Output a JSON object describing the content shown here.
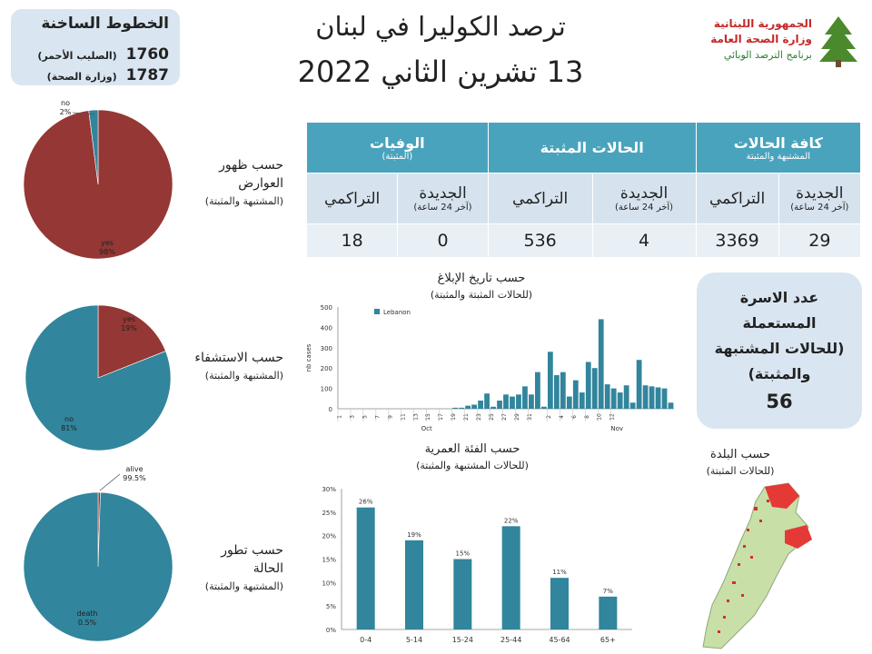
{
  "hotlines": {
    "title": "الخطوط الساخنة",
    "lines": [
      {
        "number": "1760",
        "label": "(الصليب الأحمر)"
      },
      {
        "number": "1787",
        "label": "(وزارة الصحة)"
      }
    ]
  },
  "header": {
    "title": "ترصد الكوليرا في لبنان",
    "date": "13 تشرين الثاني 2022"
  },
  "logo": {
    "line1": "الجمهورية اللبنانية",
    "line2": "وزارة الصحة العامة",
    "line3": "برنامج الترصد الوبائي"
  },
  "table": {
    "groups": [
      {
        "label": "كافة الحالات",
        "sub": "المشتبهة والمثبتة"
      },
      {
        "label": "الحالات المثبتة",
        "sub": ""
      },
      {
        "label": "الوفيات",
        "sub": "(المثبتة)"
      }
    ],
    "new_label": "الجديدة",
    "new_sub": "(آخر 24 ساعة)",
    "cum_label": "التراكمي",
    "values": [
      "29",
      "3369",
      "4",
      "536",
      "0",
      "18"
    ]
  },
  "labels": {
    "symptoms": {
      "line1": "حسب ظهور",
      "line2": "العوارض",
      "sub": "(المشتبهة والمثبتة)"
    },
    "hospital": {
      "line1": "حسب الاستشفاء",
      "sub": "(المشتبهة والمثبتة)"
    },
    "outcome": {
      "line1": "حسب تطور",
      "line2": "الحالة",
      "sub": "(المشتبهة والمثبتة)"
    },
    "report_date": {
      "line1": "حسب تاريخ الإبلاغ",
      "sub": "(للحالات المثبتة والمثبتة)"
    },
    "age_group": {
      "line1": "حسب الفئة العمرية",
      "sub": "(للحالات المشتبهة والمثبتة)"
    },
    "district": {
      "line1": "حسب البلدة",
      "sub": "(للحالات المثبتة)"
    }
  },
  "beds_box": {
    "line1": "عدد الاسرة",
    "line2": "المستعملة",
    "line3": "(للحالات المشتبهة",
    "line4": "والمثبتة)",
    "value": "56"
  },
  "chart_data": [
    {
      "type": "pie",
      "slices": [
        {
          "label": "yes",
          "value": 98,
          "display": "98%"
        },
        {
          "label": "no",
          "value": 2,
          "display": "2%"
        }
      ],
      "colors": [
        "#953735",
        "#31859c"
      ]
    },
    {
      "type": "pie",
      "slices": [
        {
          "label": "yes",
          "value": 19,
          "display": "19%"
        },
        {
          "label": "no",
          "value": 81,
          "display": "81%"
        }
      ],
      "colors": [
        "#953735",
        "#31859c"
      ]
    },
    {
      "type": "pie",
      "slices": [
        {
          "label": "death",
          "value": 0.5,
          "display": "0.5%"
        },
        {
          "label": "alive",
          "value": 99.5,
          "display": "99.5%"
        }
      ],
      "colors": [
        "#953735",
        "#31859c"
      ]
    },
    {
      "type": "bar",
      "legend": "Lebanon",
      "ylabel": "nb cases",
      "ylim": [
        0,
        500
      ],
      "yticks": [
        0,
        100,
        200,
        300,
        400,
        500
      ],
      "xticklabels": [
        "1",
        "3",
        "5",
        "7",
        "9",
        "11",
        "13",
        "15",
        "17",
        "19",
        "21",
        "23",
        "25",
        "27",
        "29",
        "31",
        "2",
        "4",
        "6",
        "8",
        "10",
        "12"
      ],
      "month_labels": [
        "Oct",
        "Nov"
      ],
      "values": [
        0,
        0,
        0,
        0,
        0,
        0,
        0,
        0,
        0,
        0,
        0,
        0,
        0,
        0,
        0,
        0,
        0,
        0,
        5,
        5,
        15,
        20,
        40,
        75,
        10,
        40,
        70,
        60,
        70,
        110,
        70,
        180,
        10,
        280,
        165,
        180,
        60,
        140,
        80,
        230,
        200,
        440,
        120,
        100,
        80,
        115,
        30,
        240,
        115,
        110,
        105,
        100,
        30
      ]
    },
    {
      "type": "bar",
      "categories": [
        "0-4",
        "5-14",
        "15-24",
        "25-44",
        "45-64",
        "65+"
      ],
      "values": [
        26,
        19,
        15,
        22,
        11,
        7
      ],
      "labels": [
        "26%",
        "19%",
        "15%",
        "22%",
        "11%",
        "7%"
      ],
      "ylim": [
        0,
        30
      ],
      "yticks": [
        "0%",
        "5%",
        "10%",
        "15%",
        "20%",
        "25%",
        "30%"
      ]
    }
  ],
  "colors": {
    "teal": "#31859c",
    "header_blue": "#4aa3bd",
    "maroon": "#953735"
  }
}
